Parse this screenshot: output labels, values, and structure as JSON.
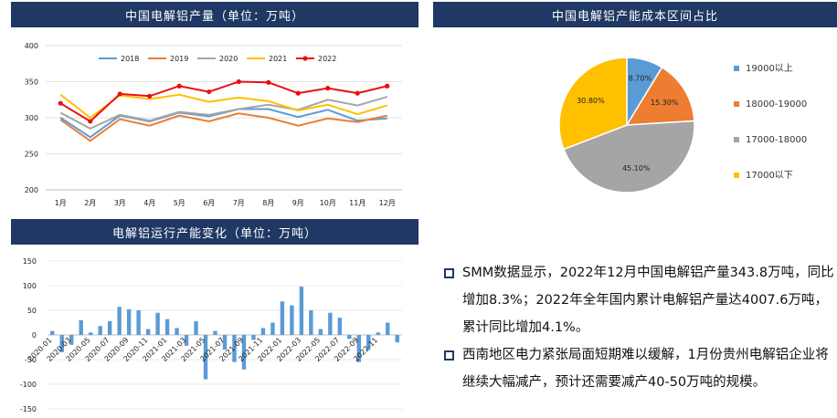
{
  "headers": {
    "production": "中国电解铝产量（单位：万吨）",
    "cost": "中国电解铝产能成本区间占比",
    "capacity": "电解铝运行产能变化（单位：万吨）"
  },
  "bullets": [
    "SMM数据显示，2022年12月中国电解铝产量343.8万吨，同比增加8.3%；2022年全年国内累计电解铝产量达4007.6万吨，累计同比增加4.1%。",
    "西南地区电力紧张局面短期难以缓解，1月份贵州电解铝企业将继续大幅减产，预计还需要减产40-50万吨的规模。"
  ],
  "chart_data": [
    {
      "type": "line",
      "title": "中国电解铝产量（单位：万吨）",
      "categories": [
        "1月",
        "2月",
        "3月",
        "4月",
        "5月",
        "6月",
        "7月",
        "8月",
        "9月",
        "10月",
        "11月",
        "12月"
      ],
      "ylim": [
        200,
        400
      ],
      "yticks": [
        200,
        250,
        300,
        350,
        400
      ],
      "legend_position": "top",
      "grid": "horizontal",
      "series": [
        {
          "name": "2018",
          "color": "#5b9bd5",
          "values": [
            300,
            273,
            303,
            295,
            307,
            302,
            312,
            312,
            301,
            311,
            296,
            299
          ]
        },
        {
          "name": "2019",
          "color": "#ed7d31",
          "values": [
            297,
            268,
            298,
            289,
            303,
            295,
            306,
            300,
            289,
            299,
            294,
            303
          ]
        },
        {
          "name": "2020",
          "color": "#a5a5a5",
          "values": [
            307,
            285,
            304,
            296,
            308,
            304,
            312,
            318,
            311,
            325,
            317,
            329
          ]
        },
        {
          "name": "2021",
          "color": "#ffc000",
          "values": [
            332,
            300,
            331,
            326,
            332,
            322,
            328,
            323,
            310,
            318,
            305,
            317
          ]
        },
        {
          "name": "2022",
          "color": "#e81010",
          "values": [
            320,
            295,
            333,
            330,
            344,
            336,
            350,
            349,
            334,
            341,
            334,
            344
          ]
        }
      ]
    },
    {
      "type": "pie",
      "title": "中国电解铝产能成本区间占比",
      "legend_position": "right",
      "slices": [
        {
          "label": "19000以上",
          "value": 8.7,
          "text": "8.70%",
          "color": "#5b9bd5"
        },
        {
          "label": "18000-19000",
          "value": 15.3,
          "text": "15.30%",
          "color": "#ed7d31"
        },
        {
          "label": "17000-18000",
          "value": 45.1,
          "text": "45.10%",
          "color": "#a5a5a5"
        },
        {
          "label": "17000以下",
          "value": 30.8,
          "text": "30.80%",
          "color": "#ffc000"
        }
      ]
    },
    {
      "type": "bar",
      "title": "电解铝运行产能变化（单位：万吨）",
      "ylim": [
        -150,
        150
      ],
      "yticks": [
        150,
        100,
        50,
        0,
        -50,
        -100,
        -150
      ],
      "color": "#5b9bd5",
      "xtick_labels": [
        "2020-01",
        "2020-03",
        "2020-05",
        "2020-07",
        "2020-09",
        "2020-11",
        "2021-01",
        "2021-03",
        "2021-05",
        "2021-07",
        "2021-09",
        "2021-11",
        "2022-01",
        "2022-03",
        "2022-05",
        "2022-07",
        "2022-09",
        "2022-11"
      ],
      "values": [
        8,
        -35,
        -20,
        30,
        5,
        18,
        28,
        57,
        52,
        50,
        12,
        45,
        32,
        14,
        -22,
        28,
        -90,
        8,
        -30,
        -55,
        -70,
        -10,
        14,
        25,
        68,
        60,
        98,
        50,
        12,
        45,
        35,
        -8,
        -55,
        -30,
        5,
        25,
        -15
      ]
    }
  ]
}
